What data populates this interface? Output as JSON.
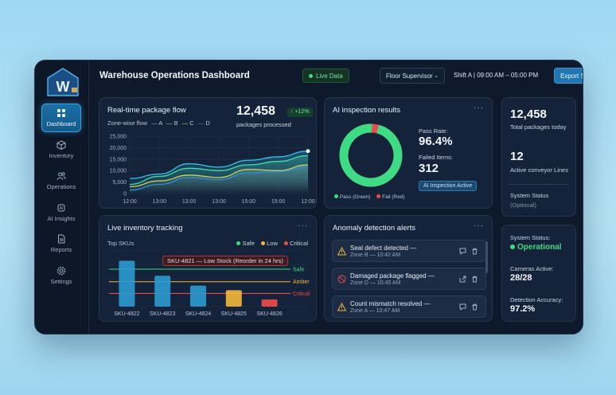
{
  "app": {
    "title": "Warehouse Operations Dashboard",
    "live_label": "Live Data",
    "role": "Floor Supervisor",
    "shift": "Shift A | 09:00 AM – 05:00 PM",
    "export_label": "Export Shift Summary",
    "logo_letter": "W"
  },
  "sidebar": {
    "items": [
      {
        "label": "Dashboard",
        "icon": "dashboard-icon"
      },
      {
        "label": "Inventory",
        "icon": "box-icon"
      },
      {
        "label": "Operations",
        "icon": "people-icon"
      },
      {
        "label": "AI Insights",
        "icon": "ai-icon"
      },
      {
        "label": "Reports",
        "icon": "report-icon"
      },
      {
        "label": "Settings",
        "icon": "gear-icon"
      }
    ]
  },
  "flow": {
    "title": "Real-time package flow",
    "total": "12,458",
    "total_label": "packages processed",
    "change": "↑ +12%",
    "legend_label": "Zone-wise flow",
    "zones": [
      "A",
      "B",
      "C",
      "D"
    ]
  },
  "inspection": {
    "title": "AI inspection results",
    "pass_label": "Pass Rate:",
    "pass_value": "96.4%",
    "failed_label": "Failed Items:",
    "failed_value": "312",
    "badge": "AI Inspection Active",
    "legend_pass": "Pass (Green)",
    "legend_fail": "Fail (Red)",
    "pass_fraction": 0.964
  },
  "summary": {
    "total": "12,458",
    "total_label": "Total packages today",
    "lines": "12",
    "lines_label": "Active conveyor Lines",
    "status_label": "System Status",
    "status_note": "(Optional)"
  },
  "inventory": {
    "title": "Live inventory tracking",
    "subtitle": "Top SKUs",
    "legend": [
      "Safe",
      "Low",
      "Critical"
    ],
    "tooltip": "SKU-4821 — Low Stock (Reorder in 24 hrs)",
    "thresholds": [
      "Safe",
      "Amber",
      "Critical"
    ]
  },
  "anomalies": {
    "title": "Anomaly detection alerts",
    "items": [
      {
        "title": "Seal defect detected —",
        "meta": "Zone B — 10:42 AM",
        "icon": "warning-icon"
      },
      {
        "title": "Damaged package flagged —",
        "meta": "Zone D — 10:45 AM",
        "icon": "blocked-icon"
      },
      {
        "title": "Count mismatch resolved —",
        "meta": "Zone A — 10:47 AM",
        "icon": "warning-icon"
      }
    ]
  },
  "health": {
    "status_label": "System Status:",
    "status_value": "Operational",
    "cameras_label": "Cameras Active:",
    "cameras_value": "28/28",
    "accuracy_label": "Detection Accuracy:",
    "accuracy_value": "97.2%"
  },
  "chart_data": [
    {
      "type": "line",
      "title": "Real-time package flow",
      "x": [
        "12:00",
        "13:00",
        "13:00",
        "13:00",
        "15:00",
        "15:00",
        "12:00"
      ],
      "series": [
        {
          "name": "A",
          "color": "#36c3ea",
          "values": [
            6500,
            8500,
            13000,
            11500,
            14500,
            16000,
            18500
          ]
        },
        {
          "name": "B",
          "color": "#3fe0b0",
          "values": [
            4000,
            7500,
            11000,
            10000,
            12500,
            14000,
            16500
          ]
        },
        {
          "name": "C",
          "color": "#c9d36a",
          "values": [
            3000,
            5500,
            8000,
            7000,
            10500,
            10000,
            12500
          ]
        },
        {
          "name": "D",
          "color": "#2f8fd8",
          "values": [
            1500,
            4000,
            7000,
            6000,
            9000,
            9500,
            11500
          ]
        }
      ],
      "yticks": [
        "0",
        "5,000",
        "10,000",
        "15,000",
        "20,000",
        "25,000"
      ],
      "ylim": [
        0,
        25000
      ]
    },
    {
      "type": "bar",
      "title": "Live inventory tracking",
      "categories": [
        "SKU-4822",
        "SKU-4823",
        "SKU-4824",
        "SKU-4825",
        "SKU-4826"
      ],
      "values": [
        70,
        47,
        32,
        25,
        11
      ],
      "statuses": [
        "safe",
        "safe",
        "safe",
        "low",
        "critical"
      ],
      "ylim": [
        0,
        85
      ],
      "thresholds": {
        "Safe": 57,
        "Amber": 38,
        "Critical": 20
      }
    }
  ],
  "colors": {
    "accent": "#1f76b0",
    "safe": "#3ddc84",
    "low": "#f5b73b",
    "critical": "#ef4b4b",
    "bar": "#2b9ad1"
  }
}
